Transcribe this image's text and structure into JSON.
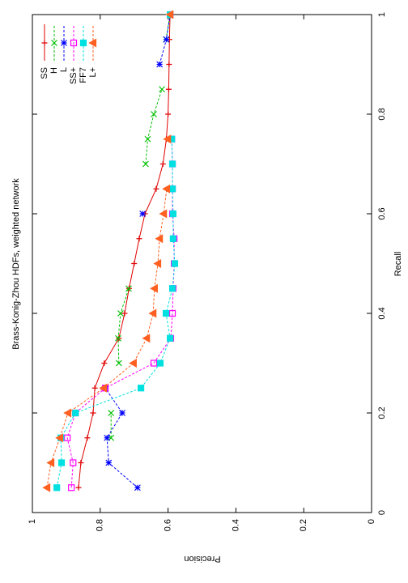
{
  "chart_data": {
    "type": "line",
    "title": "Brass-Konig-Zhou HDFs, weighted network",
    "x_label": "Recall",
    "y_label": "Precision",
    "x": [
      0.05,
      0.1,
      0.15,
      0.2,
      0.25,
      0.3,
      0.35,
      0.4,
      0.45,
      0.5,
      0.55,
      0.6,
      0.65,
      0.7,
      0.75,
      0.8,
      0.85,
      0.9,
      0.95,
      1.0
    ],
    "xlim": [
      0,
      1
    ],
    "ylim": [
      0,
      1
    ],
    "xticks": [
      0,
      0.2,
      0.4,
      0.6,
      0.8,
      1
    ],
    "yticks": [
      0,
      0.2,
      0.4,
      0.6,
      0.8,
      1
    ],
    "legend": "top-right",
    "series": [
      {
        "name": "SS",
        "color": "#e00000",
        "marker": "plus",
        "values": [
          0.864,
          0.857,
          0.838,
          0.821,
          0.816,
          0.788,
          0.745,
          0.728,
          0.715,
          0.7,
          0.685,
          0.668,
          0.635,
          0.615,
          0.605,
          0.6,
          0.598,
          0.597,
          0.596,
          0.594
        ]
      },
      {
        "name": "H",
        "color": "#00c000",
        "marker": "x",
        "values": [
          null,
          null,
          0.768,
          0.768,
          null,
          0.745,
          0.747,
          0.74,
          0.716,
          null,
          null,
          null,
          null,
          0.666,
          0.66,
          0.642,
          0.618,
          null,
          0.606,
          0.594
        ]
      },
      {
        "name": "L",
        "color": "#0000ff",
        "marker": "star",
        "values": [
          0.69,
          0.775,
          0.78,
          0.735,
          0.785,
          null,
          null,
          null,
          null,
          null,
          null,
          0.675,
          null,
          null,
          null,
          null,
          null,
          0.625,
          0.605,
          0.594
        ]
      },
      {
        "name": "SS+",
        "color": "#ff00ff",
        "marker": "square",
        "values": [
          0.885,
          0.88,
          0.897,
          0.873,
          0.785,
          0.642,
          0.592,
          0.587,
          0.585,
          0.582,
          0.582,
          0.587,
          0.587,
          0.587,
          0.589,
          null,
          null,
          null,
          null,
          0.594
        ]
      },
      {
        "name": "FF7",
        "color": "#00e0e0",
        "marker": "filled-square",
        "values": [
          0.928,
          0.914,
          0.916,
          0.873,
          0.68,
          0.623,
          0.594,
          0.606,
          0.587,
          0.58,
          0.585,
          0.585,
          0.587,
          0.587,
          0.589,
          null,
          null,
          null,
          null,
          0.594
        ]
      },
      {
        "name": "L+",
        "color": "#ff6020",
        "marker": "triangle",
        "values": [
          0.957,
          0.945,
          0.919,
          0.895,
          0.79,
          0.702,
          0.663,
          0.644,
          0.64,
          0.63,
          0.625,
          0.613,
          0.604,
          null,
          0.601,
          null,
          null,
          null,
          null,
          0.594
        ]
      }
    ]
  }
}
